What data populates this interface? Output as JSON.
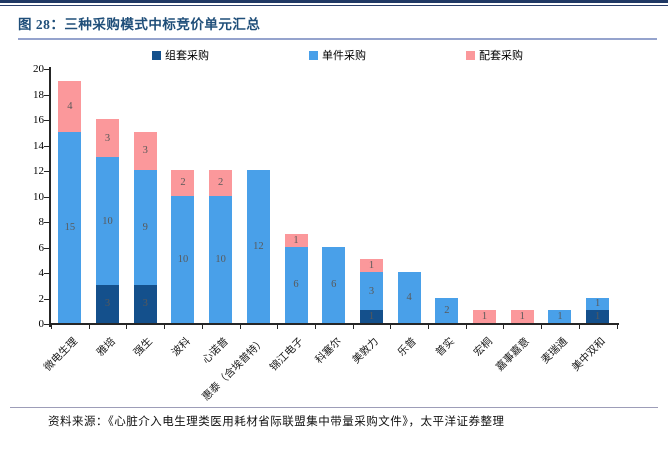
{
  "header": {
    "title": "图 28：三种采购模式中标竞价单元汇总"
  },
  "legend": [
    {
      "label": "组套采购",
      "color": "#14508C"
    },
    {
      "label": "单件采购",
      "color": "#49A0E9"
    },
    {
      "label": "配套采购",
      "color": "#FB989B"
    }
  ],
  "chart_data": {
    "type": "bar",
    "stacked": true,
    "title": "三种采购模式中标竞价单元汇总",
    "categories": [
      "微电生理",
      "雅培",
      "强生",
      "波科",
      "心诺普",
      "惠泰（含埃普特）",
      "锦江电子",
      "科塞尔",
      "美敦力",
      "乐普",
      "普实",
      "宏桐",
      "嘉事嘉意",
      "麦瑞通",
      "美中双和"
    ],
    "series": [
      {
        "name": "组套采购",
        "color": "#14508C",
        "values": [
          0,
          3,
          3,
          0,
          0,
          0,
          0,
          0,
          1,
          0,
          0,
          0,
          0,
          0,
          1
        ]
      },
      {
        "name": "单件采购",
        "color": "#49A0E9",
        "values": [
          15,
          10,
          9,
          10,
          10,
          12,
          6,
          6,
          3,
          4,
          2,
          0,
          0,
          1,
          1
        ]
      },
      {
        "name": "配套采购",
        "color": "#FB989B",
        "values": [
          4,
          3,
          3,
          2,
          2,
          0,
          1,
          0,
          1,
          0,
          0,
          1,
          1,
          0,
          0
        ]
      }
    ],
    "totals": [
      19,
      16,
      15,
      12,
      12,
      12,
      7,
      6,
      5,
      4,
      2,
      1,
      1,
      1,
      2
    ],
    "ylim": [
      0,
      20
    ],
    "ytick_step": 2,
    "grid": false,
    "legend_position": "top",
    "value_label_color": "#595959"
  },
  "footer": {
    "source": "资料来源：《心脏介入电生理类医用耗材省际联盟集中带量采购文件》，太平洋证券整理"
  }
}
